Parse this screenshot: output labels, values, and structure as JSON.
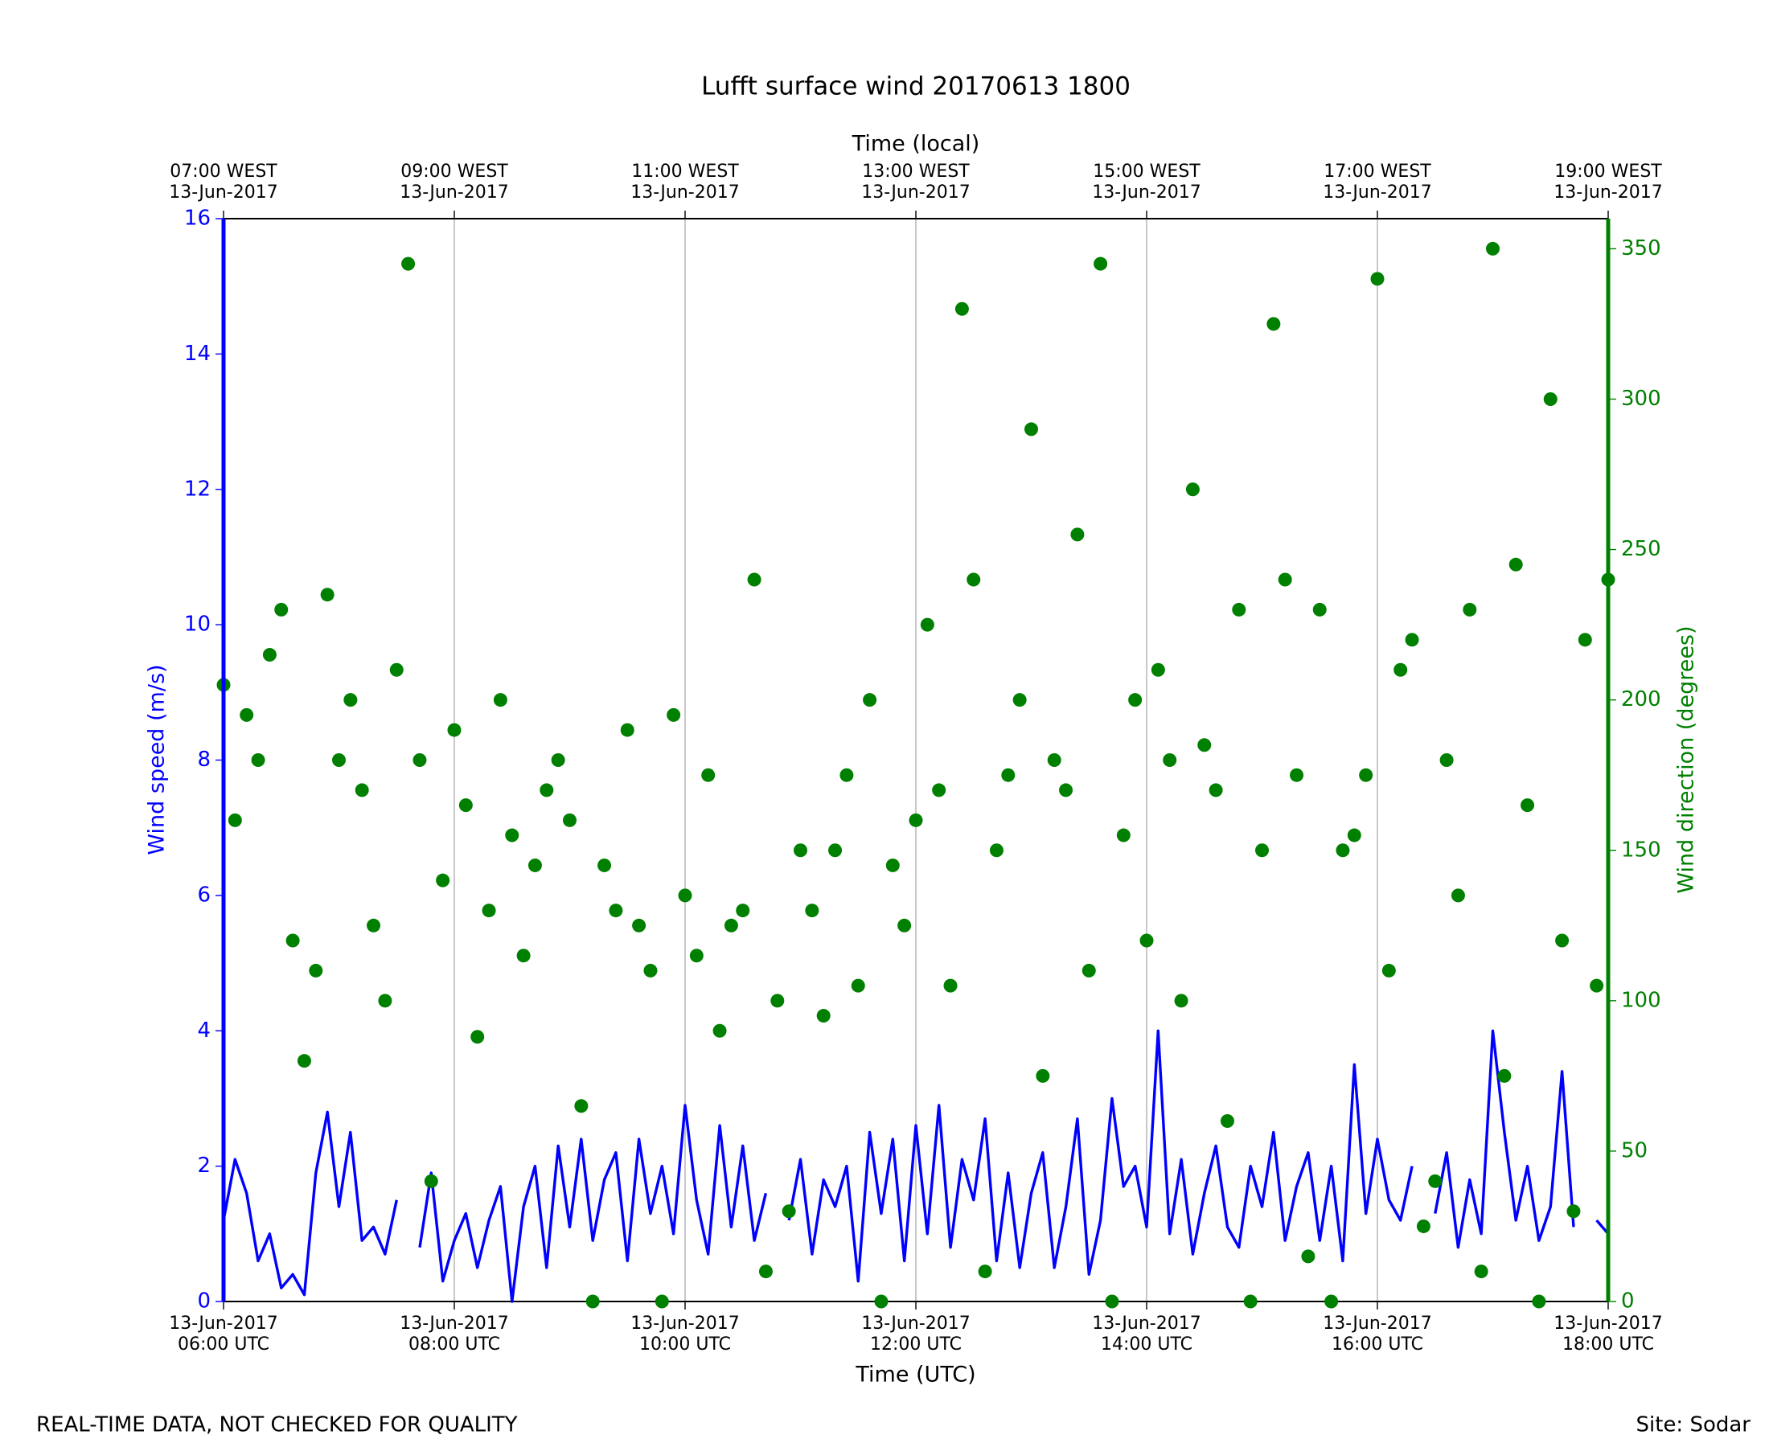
{
  "chart_data": {
    "type": "line",
    "title": "Lufft surface wind 20170613 1800",
    "xlabel": "Time (UTC)",
    "x2label": "Time (local)",
    "ylabel": "Wind speed (m/s)",
    "y2label": "Wind direction (degrees)",
    "footer_left": "REAL-TIME DATA, NOT CHECKED FOR QUALITY",
    "footer_right": "Site: Sodar",
    "xlim": [
      6,
      18
    ],
    "xticks": [
      {
        "value": 6,
        "label": [
          "13-Jun-2017",
          "06:00 UTC"
        ]
      },
      {
        "value": 8,
        "label": [
          "13-Jun-2017",
          "08:00 UTC"
        ]
      },
      {
        "value": 10,
        "label": [
          "13-Jun-2017",
          "10:00 UTC"
        ]
      },
      {
        "value": 12,
        "label": [
          "13-Jun-2017",
          "12:00 UTC"
        ]
      },
      {
        "value": 14,
        "label": [
          "13-Jun-2017",
          "14:00 UTC"
        ]
      },
      {
        "value": 16,
        "label": [
          "13-Jun-2017",
          "16:00 UTC"
        ]
      },
      {
        "value": 18,
        "label": [
          "13-Jun-2017",
          "18:00 UTC"
        ]
      }
    ],
    "x2ticks": [
      {
        "value": 6,
        "label": [
          "07:00 WEST",
          "13-Jun-2017"
        ]
      },
      {
        "value": 8,
        "label": [
          "09:00 WEST",
          "13-Jun-2017"
        ]
      },
      {
        "value": 10,
        "label": [
          "11:00 WEST",
          "13-Jun-2017"
        ]
      },
      {
        "value": 12,
        "label": [
          "13:00 WEST",
          "13-Jun-2017"
        ]
      },
      {
        "value": 14,
        "label": [
          "15:00 WEST",
          "13-Jun-2017"
        ]
      },
      {
        "value": 16,
        "label": [
          "17:00 WEST",
          "13-Jun-2017"
        ]
      },
      {
        "value": 18,
        "label": [
          "19:00 WEST",
          "13-Jun-2017"
        ]
      }
    ],
    "ylim": [
      0,
      16
    ],
    "yticks": [
      0,
      2,
      4,
      6,
      8,
      10,
      12,
      14,
      16
    ],
    "y2lim": [
      0,
      360
    ],
    "y2ticks": [
      0,
      50,
      100,
      150,
      200,
      250,
      300,
      350
    ],
    "xgrid": true,
    "x": [
      6.0,
      6.1,
      6.2,
      6.3,
      6.4,
      6.5,
      6.6,
      6.7,
      6.8,
      6.9,
      7.0,
      7.1,
      7.2,
      7.3,
      7.4,
      7.5,
      7.6,
      7.7,
      7.8,
      7.9,
      8.0,
      8.1,
      8.2,
      8.3,
      8.4,
      8.5,
      8.6,
      8.7,
      8.8,
      8.9,
      9.0,
      9.1,
      9.2,
      9.3,
      9.4,
      9.5,
      9.6,
      9.7,
      9.8,
      9.9,
      10.0,
      10.1,
      10.2,
      10.3,
      10.4,
      10.5,
      10.6,
      10.7,
      10.8,
      10.9,
      11.0,
      11.1,
      11.2,
      11.3,
      11.4,
      11.5,
      11.6,
      11.7,
      11.8,
      11.9,
      12.0,
      12.1,
      12.2,
      12.3,
      12.4,
      12.5,
      12.6,
      12.7,
      12.8,
      12.9,
      13.0,
      13.1,
      13.2,
      13.3,
      13.4,
      13.5,
      13.6,
      13.7,
      13.8,
      13.9,
      14.0,
      14.1,
      14.2,
      14.3,
      14.4,
      14.5,
      14.6,
      14.7,
      14.8,
      14.9,
      15.0,
      15.1,
      15.2,
      15.3,
      15.4,
      15.5,
      15.6,
      15.7,
      15.8,
      15.9,
      16.0,
      16.1,
      16.2,
      16.3,
      16.4,
      16.5,
      16.6,
      16.7,
      16.8,
      16.9,
      17.0,
      17.1,
      17.2,
      17.3,
      17.4,
      17.5,
      17.6,
      17.7,
      17.8,
      17.9,
      18.0
    ],
    "series": [
      {
        "style": "line",
        "axis": "y",
        "color": "#0000ff",
        "values": [
          1.2,
          2.1,
          1.6,
          0.6,
          1.0,
          0.2,
          0.4,
          0.1,
          1.9,
          2.8,
          1.4,
          2.5,
          0.9,
          1.1,
          0.7,
          1.5,
          null,
          0.8,
          1.9,
          0.3,
          0.9,
          1.3,
          0.5,
          1.2,
          1.7,
          0.0,
          1.4,
          2.0,
          0.5,
          2.3,
          1.1,
          2.4,
          0.9,
          1.8,
          2.2,
          0.6,
          2.4,
          1.3,
          2.0,
          1.0,
          2.9,
          1.5,
          0.7,
          2.6,
          1.1,
          2.3,
          0.9,
          1.6,
          null,
          1.2,
          2.1,
          0.7,
          1.8,
          1.4,
          2.0,
          0.3,
          2.5,
          1.3,
          2.4,
          0.6,
          2.6,
          1.0,
          2.9,
          0.8,
          2.1,
          1.5,
          2.7,
          0.6,
          1.9,
          0.5,
          1.6,
          2.2,
          0.5,
          1.4,
          2.7,
          0.4,
          1.2,
          3.0,
          1.7,
          2.0,
          1.1,
          4.0,
          1.0,
          2.1,
          0.7,
          1.6,
          2.3,
          1.1,
          0.8,
          2.0,
          1.4,
          2.5,
          0.9,
          1.7,
          2.2,
          0.9,
          2.0,
          0.6,
          3.5,
          1.3,
          2.4,
          1.5,
          1.2,
          2.0,
          null,
          1.3,
          2.2,
          0.8,
          1.8,
          1.0,
          4.0,
          2.5,
          1.2,
          2.0,
          0.9,
          1.4,
          3.4,
          1.1,
          null,
          1.2,
          1.0
        ]
      },
      {
        "style": "scatter",
        "axis": "y2",
        "color": "#008000",
        "values": [
          205,
          160,
          195,
          180,
          215,
          230,
          120,
          80,
          110,
          235,
          180,
          200,
          170,
          125,
          100,
          210,
          345,
          180,
          40,
          140,
          190,
          165,
          88,
          130,
          200,
          155,
          115,
          145,
          170,
          180,
          160,
          65,
          0,
          145,
          130,
          190,
          125,
          110,
          0,
          195,
          135,
          115,
          175,
          90,
          125,
          130,
          240,
          10,
          100,
          30,
          150,
          130,
          95,
          150,
          175,
          105,
          200,
          0,
          145,
          125,
          160,
          225,
          170,
          105,
          330,
          240,
          10,
          150,
          175,
          200,
          290,
          75,
          180,
          170,
          255,
          110,
          345,
          0,
          155,
          200,
          120,
          210,
          180,
          100,
          270,
          185,
          170,
          60,
          230,
          0,
          150,
          325,
          240,
          175,
          15,
          230,
          0,
          150,
          155,
          175,
          340,
          110,
          210,
          220,
          25,
          40,
          180,
          135,
          230,
          10,
          350,
          75,
          245,
          165,
          0,
          300,
          120,
          30,
          220,
          105,
          240
        ]
      }
    ]
  }
}
